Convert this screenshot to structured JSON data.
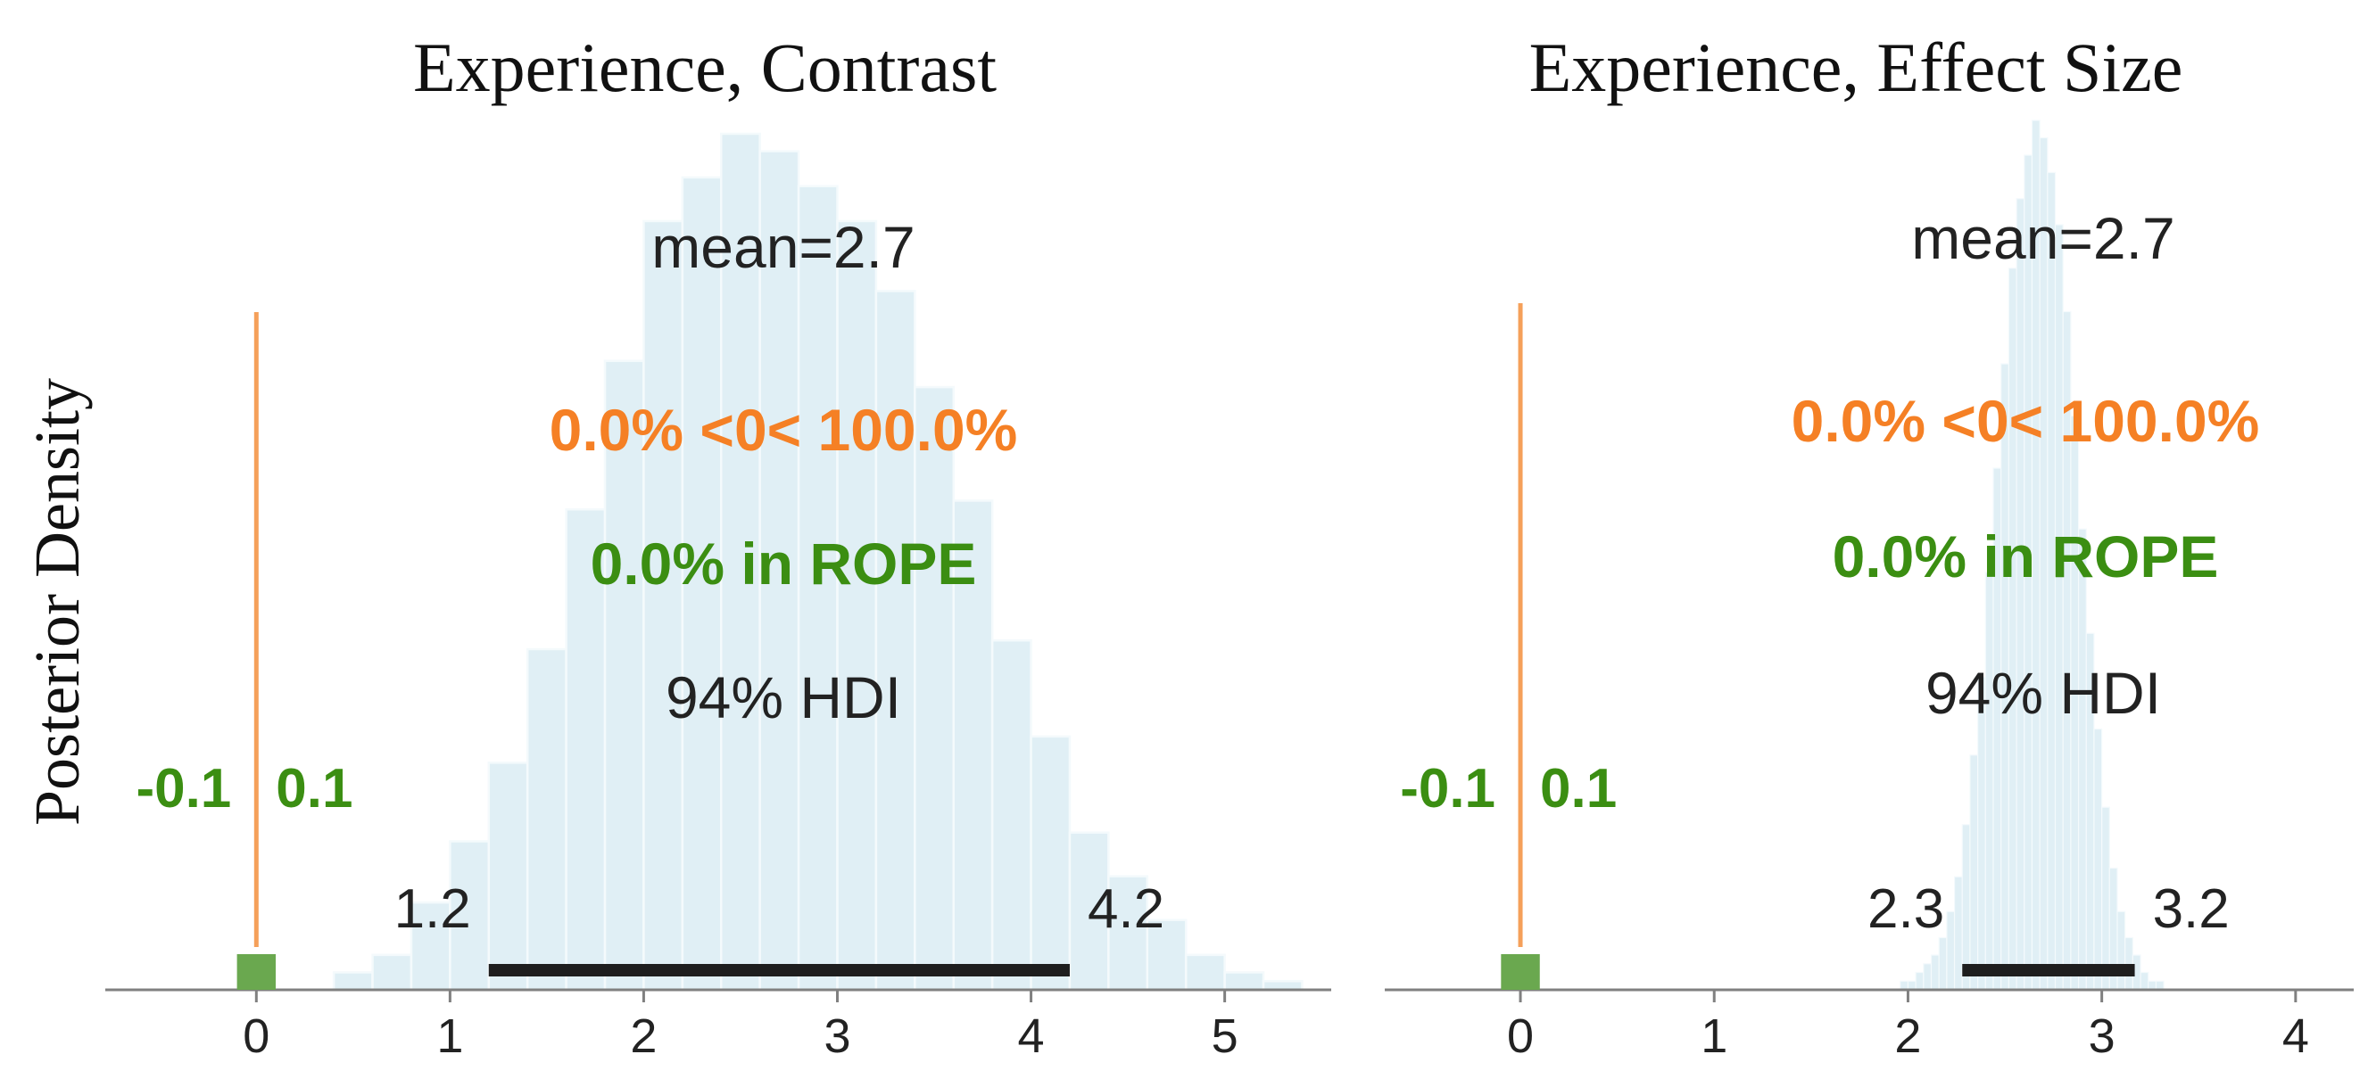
{
  "figure": {
    "ylabel": "Posterior Density"
  },
  "chart_data": [
    {
      "type": "histogram",
      "title": "Experience, Contrast",
      "xlim": [
        -0.78,
        5.55
      ],
      "xticks": [
        0,
        1,
        2,
        3,
        4,
        5
      ],
      "bin_width": 0.2,
      "hist_x_start": 0.4,
      "hist_counts": [
        2,
        4,
        10,
        17,
        26,
        39,
        55,
        72,
        88,
        93,
        98,
        96,
        92,
        88,
        80,
        69,
        56,
        40,
        29,
        18,
        13,
        8,
        4,
        2,
        1
      ],
      "mean_label": "mean=2.7",
      "ref_value": 0,
      "prob_label": "0.0% <0< 100.0%",
      "rope": [
        -0.1,
        0.1
      ],
      "rope_low_label": "-0.1",
      "rope_high_label": "0.1",
      "rope_label": "0.0% in ROPE",
      "hdi_prob_label": "94% HDI",
      "hdi": [
        1.2,
        4.2
      ],
      "hdi_low_label": "1.2",
      "hdi_high_label": "4.2"
    },
    {
      "type": "histogram",
      "title": "Experience, Effect Size",
      "xlim": [
        -0.7,
        4.3
      ],
      "xticks": [
        0,
        1,
        2,
        3,
        4
      ],
      "bin_width": 0.04,
      "hist_x_start": 1.96,
      "hist_counts": [
        1,
        1,
        2,
        3,
        4,
        6,
        9,
        13,
        19,
        27,
        36,
        48,
        60,
        72,
        83,
        91,
        96,
        100,
        98,
        94,
        88,
        78,
        66,
        53,
        41,
        30,
        21,
        14,
        9,
        6,
        4,
        2,
        1,
        1
      ],
      "mean_label": "mean=2.7",
      "ref_value": 0,
      "prob_label": "0.0% <0< 100.0%",
      "rope": [
        -0.1,
        0.1
      ],
      "rope_low_label": "-0.1",
      "rope_high_label": "0.1",
      "rope_label": "0.0% in ROPE",
      "hdi_prob_label": "94% HDI",
      "hdi": [
        2.28,
        3.17
      ],
      "hdi_low_label": "2.3",
      "hdi_high_label": "3.2"
    }
  ],
  "colors": {
    "bar_fill": "#e0eff5",
    "bar_edge": "#f4fafc",
    "ref_line": "#f5a05a",
    "prob_text": "#f58025",
    "rope_text": "#3b8e12",
    "rope_marker": "#6aa84f",
    "hdi_bar": "#1e1e1e",
    "text": "#222222",
    "axis": "#808080"
  }
}
